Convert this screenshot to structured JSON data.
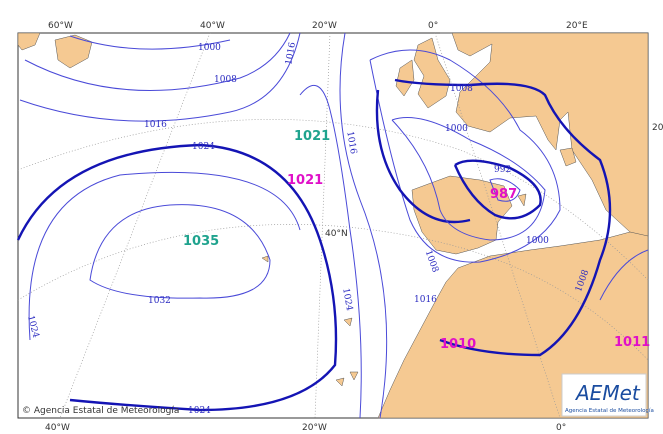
{
  "map": {
    "top_labels": [
      "60°W",
      "40°W",
      "20°W",
      "0°",
      "20°E"
    ],
    "bottom_labels": [
      "40°W",
      "20°W",
      "0°"
    ],
    "right_label": "20",
    "grid_label": "40°N",
    "isobar_labels": [
      "1000",
      "1008",
      "1016",
      "1024",
      "1016",
      "1016",
      "1008",
      "1000",
      "992",
      "1000",
      "1008",
      "1016",
      "1024",
      "1032",
      "1024",
      "1024",
      "1008"
    ],
    "centers": [
      "1021",
      "1021",
      "1035",
      "987",
      "1010",
      "1011"
    ],
    "copyright": "© Agencia Estatal de Meteorología",
    "logo": {
      "name": "AEMet",
      "subtitle": "Agencia Estatal de Meteorología"
    }
  }
}
